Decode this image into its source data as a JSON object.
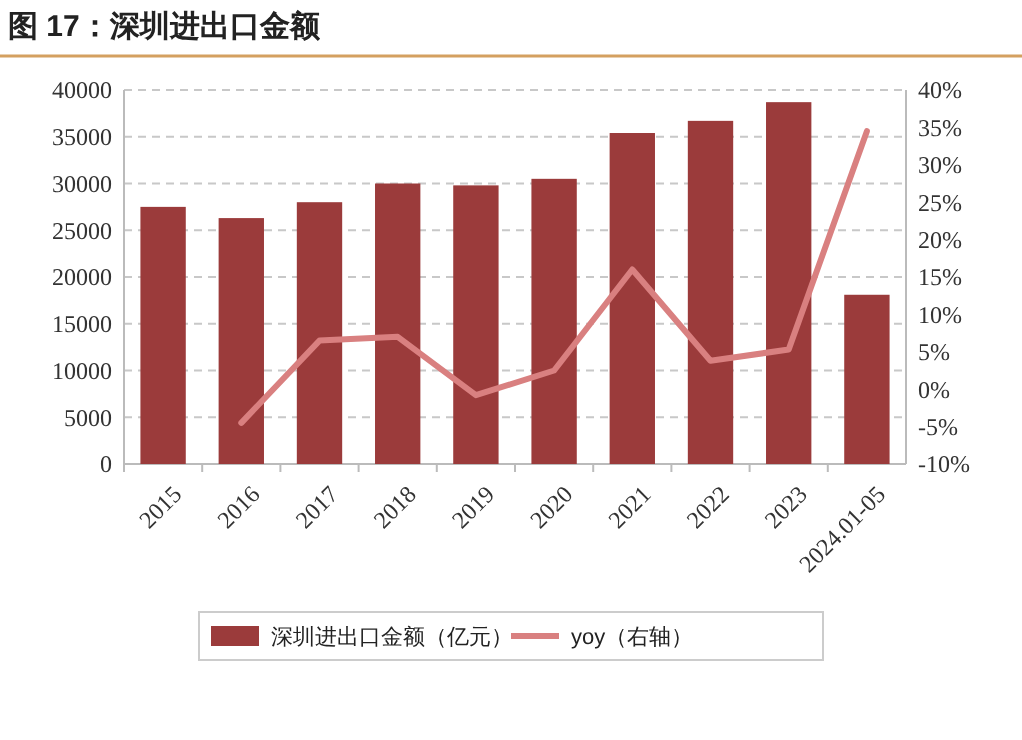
{
  "chart_data": {
    "type": "bar",
    "title": "图 17：深圳进出口金额",
    "categories": [
      "2015",
      "2016",
      "2017",
      "2018",
      "2019",
      "2020",
      "2021",
      "2022",
      "2023",
      "2024.01-05"
    ],
    "series": [
      {
        "name": "深圳进出口金额（亿元）",
        "color": "#9b3b3b",
        "values": [
          27500,
          26300,
          28000,
          30000,
          29800,
          30500,
          35400,
          36700,
          38700,
          18100
        ]
      },
      {
        "name": "yoy（右轴）",
        "type": "line",
        "axis": "y2",
        "color": "#d98080",
        "values": [
          null,
          -4.5,
          6.5,
          7.0,
          -0.8,
          2.5,
          16,
          3.8,
          5.3,
          34.5
        ]
      }
    ],
    "ylim": [
      0,
      40000
    ],
    "yticks": [
      0,
      5000,
      10000,
      15000,
      20000,
      25000,
      30000,
      35000,
      40000
    ],
    "y2lim": [
      -10,
      40
    ],
    "y2ticks": [
      {
        "value": -10,
        "label": "-10%"
      },
      {
        "value": -5,
        "label": "-5%"
      },
      {
        "value": 0,
        "label": "0%"
      },
      {
        "value": 5,
        "label": "5%"
      },
      {
        "value": 10,
        "label": "10%"
      },
      {
        "value": 15,
        "label": "15%"
      },
      {
        "value": 20,
        "label": "20%"
      },
      {
        "value": 25,
        "label": "25%"
      },
      {
        "value": 30,
        "label": "30%"
      },
      {
        "value": 35,
        "label": "35%"
      },
      {
        "value": 40,
        "label": "40%"
      }
    ],
    "grid": "y",
    "legend": "bottom"
  }
}
